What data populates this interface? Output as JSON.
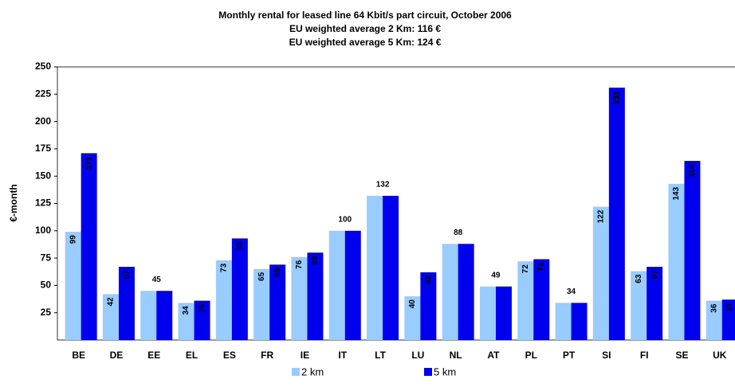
{
  "chart_data": {
    "type": "bar",
    "title": "Monthly rental for leased line 64 Kbit/s part circuit, October 2006",
    "subtitle": [
      "EU weighted average 2 Km: 116 €",
      "EU weighted average 5 Km: 124 €"
    ],
    "y_label": "€-month",
    "categories": [
      "BE",
      "DE",
      "EE",
      "EL",
      "ES",
      "FR",
      "IE",
      "IT",
      "LT",
      "LU",
      "NL",
      "AT",
      "PL",
      "PT",
      "SI",
      "FI",
      "SE",
      "UK"
    ],
    "series": [
      {
        "name": "2 km",
        "color": "#99ccff",
        "values": [
          99,
          42,
          45,
          34,
          73,
          65,
          76,
          100,
          132,
          40,
          88,
          49,
          72,
          34,
          122,
          63,
          143,
          36
        ]
      },
      {
        "name": "5 km",
        "color": "#0000ee",
        "values": [
          171,
          67,
          45,
          36,
          93,
          69,
          80,
          100,
          132,
          62,
          88,
          49,
          74,
          34,
          231,
          67,
          164,
          37
        ]
      }
    ],
    "ylim": [
      0,
      250
    ],
    "yticks": [
      25,
      50,
      75,
      100,
      125,
      150,
      175,
      200,
      225,
      250
    ],
    "grid": false,
    "legend": "bottom"
  }
}
